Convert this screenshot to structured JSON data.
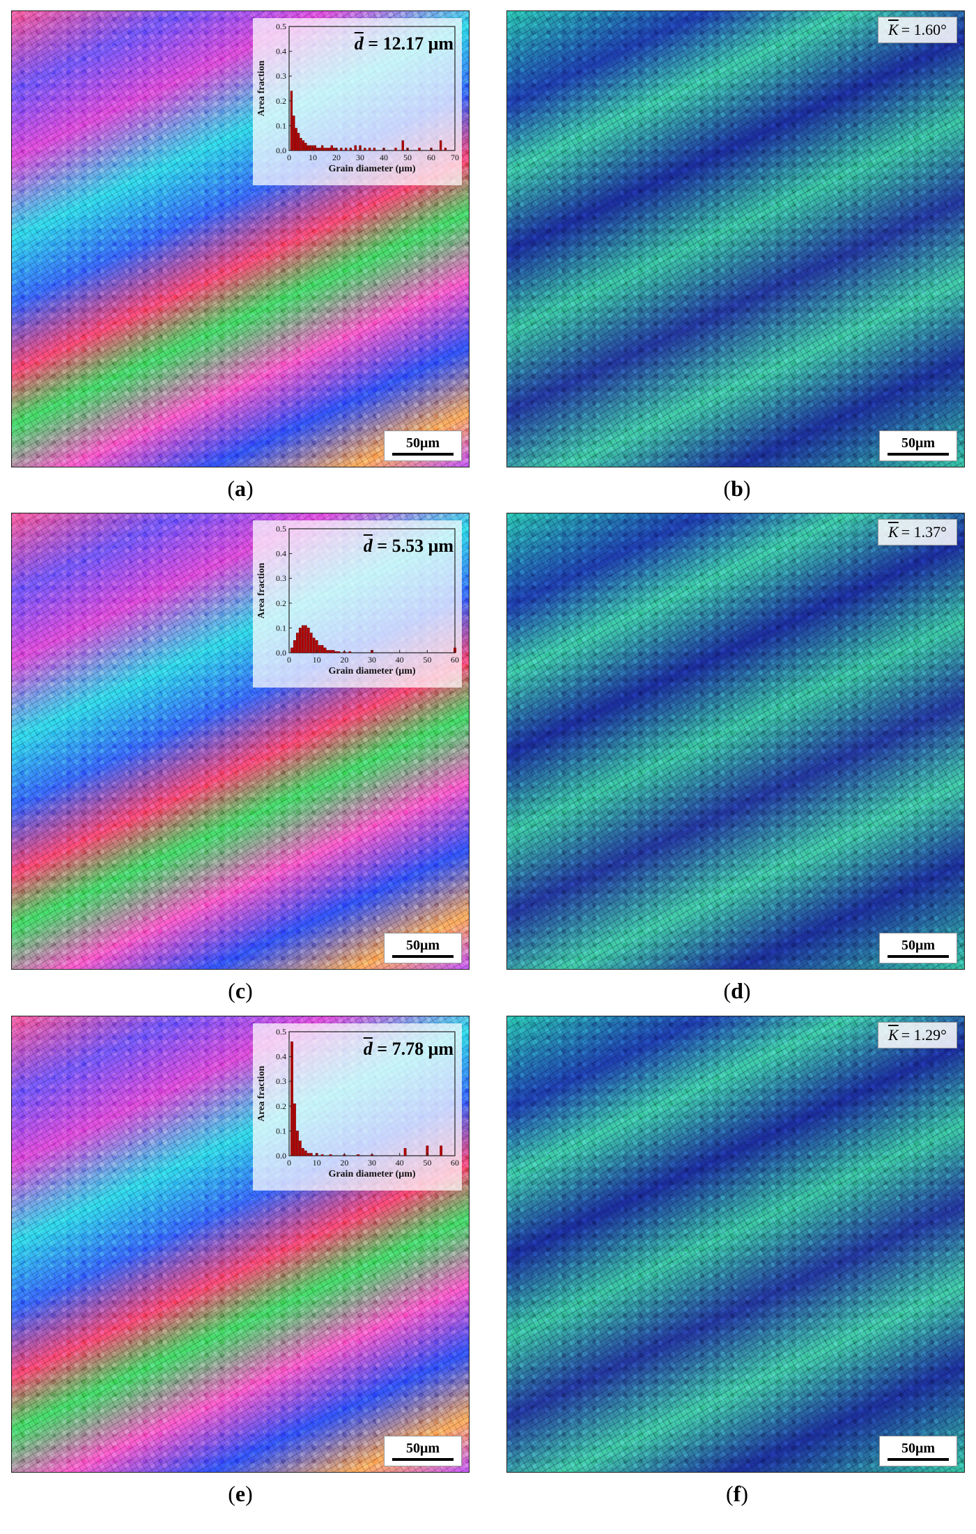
{
  "scale_bar_label": "50μm",
  "panels": [
    {
      "id": "a",
      "caption": "a",
      "inset": {
        "mean_label_prefix": "d",
        "mean_label_value": "= 12.17 μm",
        "chart_data": {
          "type": "bar",
          "xlabel": "Grain diameter (μm)",
          "ylabel": "Area fraction",
          "xlim": [
            0,
            70
          ],
          "ylim": [
            0,
            0.5
          ],
          "xticks": [
            "0",
            "10",
            "20",
            "30",
            "40",
            "50",
            "60",
            "70"
          ],
          "yticks": [
            "0.0",
            "0.1",
            "0.2",
            "0.3",
            "0.4",
            "0.5"
          ],
          "x": [
            1,
            2,
            3,
            4,
            5,
            6,
            7,
            8,
            9,
            10,
            11,
            12,
            13,
            14,
            15,
            16,
            17,
            18,
            19,
            20,
            22,
            24,
            26,
            28,
            30,
            32,
            34,
            36,
            40,
            45,
            48,
            50,
            55,
            60,
            64,
            66
          ],
          "values": [
            0.24,
            0.14,
            0.09,
            0.07,
            0.05,
            0.04,
            0.03,
            0.02,
            0.02,
            0.02,
            0.02,
            0.01,
            0.01,
            0.02,
            0.01,
            0.01,
            0.01,
            0.02,
            0.01,
            0.01,
            0.01,
            0.01,
            0.01,
            0.02,
            0.02,
            0.01,
            0.01,
            0.01,
            0.01,
            0.01,
            0.04,
            0.01,
            0.01,
            0.01,
            0.04,
            0.01
          ]
        }
      }
    },
    {
      "id": "b",
      "caption": "b",
      "kam_label_value": "= 1.60°",
      "kam_label_symbol": "K"
    },
    {
      "id": "c",
      "caption": "c",
      "inset": {
        "mean_label_prefix": "d",
        "mean_label_value": "= 5.53 μm",
        "chart_data": {
          "type": "bar",
          "xlabel": "Grain diameter (μm)",
          "ylabel": "Area fraction",
          "xlim": [
            0,
            60
          ],
          "ylim": [
            0,
            0.5
          ],
          "xticks": [
            "0",
            "10",
            "20",
            "30",
            "40",
            "50",
            "60"
          ],
          "yticks": [
            "0.0",
            "0.1",
            "0.2",
            "0.3",
            "0.4",
            "0.5"
          ],
          "x": [
            1,
            2,
            3,
            4,
            5,
            6,
            7,
            8,
            9,
            10,
            11,
            12,
            13,
            14,
            15,
            16,
            17,
            18,
            20,
            22,
            30,
            60
          ],
          "values": [
            0.02,
            0.05,
            0.08,
            0.1,
            0.11,
            0.11,
            0.1,
            0.08,
            0.06,
            0.05,
            0.03,
            0.03,
            0.02,
            0.01,
            0.01,
            0.01,
            0.005,
            0.005,
            0.005,
            0.005,
            0.01,
            0.02
          ]
        }
      }
    },
    {
      "id": "d",
      "caption": "d",
      "kam_label_value": "= 1.37°",
      "kam_label_symbol": "K"
    },
    {
      "id": "e",
      "caption": "e",
      "inset": {
        "mean_label_prefix": "d",
        "mean_label_value": "= 7.78 μm",
        "chart_data": {
          "type": "bar",
          "xlabel": "Grain diameter (μm)",
          "ylabel": "Area fraction",
          "xlim": [
            0,
            60
          ],
          "ylim": [
            0,
            0.5
          ],
          "xticks": [
            "0",
            "10",
            "20",
            "30",
            "40",
            "50",
            "60"
          ],
          "yticks": [
            "0.0",
            "0.1",
            "0.2",
            "0.3",
            "0.4",
            "0.5"
          ],
          "x": [
            1,
            2,
            3,
            4,
            5,
            6,
            7,
            8,
            10,
            12,
            15,
            20,
            25,
            30,
            42,
            50,
            55
          ],
          "values": [
            0.46,
            0.21,
            0.1,
            0.06,
            0.03,
            0.02,
            0.01,
            0.01,
            0.01,
            0.005,
            0.005,
            0.005,
            0.005,
            0.005,
            0.03,
            0.04,
            0.04
          ]
        }
      }
    },
    {
      "id": "f",
      "caption": "f",
      "kam_label_value": "= 1.29°",
      "kam_label_symbol": "K"
    }
  ]
}
